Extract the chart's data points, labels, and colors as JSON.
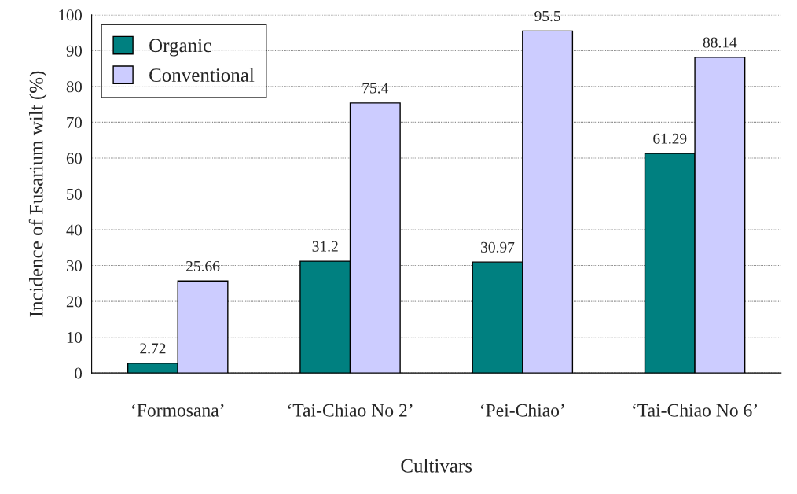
{
  "chart_data": {
    "type": "bar",
    "xlabel": "Cultivars",
    "ylabel": "Incidence of Fusarium wilt (%)",
    "categories": [
      "‘Formosana’",
      "‘Tai-Chiao No 2’",
      "‘Pei-Chiao’",
      "‘Tai-Chiao No 6’"
    ],
    "series": [
      {
        "name": "Organic",
        "color": "#008080",
        "values": [
          2.72,
          31.2,
          30.97,
          61.29
        ]
      },
      {
        "name": "Conventional",
        "color": "#ccccff",
        "values": [
          25.66,
          75.4,
          95.5,
          88.14
        ]
      }
    ],
    "ylim": [
      0,
      100
    ],
    "yticks": [
      0,
      10,
      20,
      30,
      40,
      50,
      60,
      70,
      80,
      90,
      100
    ],
    "grid": "y",
    "legend": "top left",
    "data_labels": true
  }
}
